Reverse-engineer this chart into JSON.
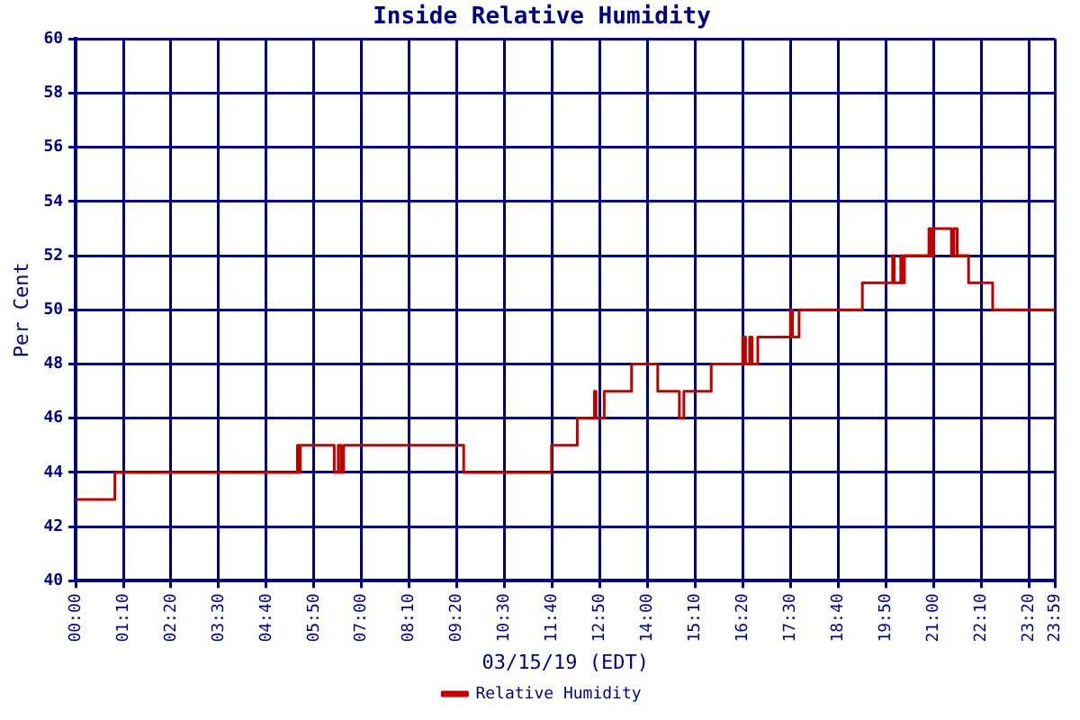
{
  "chart_data": {
    "type": "step",
    "title": "Inside Relative Humidity",
    "xlabel": "03/15/19 (EDT)",
    "ylabel": "Per Cent",
    "series": [
      {
        "name": "Relative Humidity",
        "color": "#c00000",
        "x": [
          0,
          0.96,
          5.43,
          5.47,
          5.5,
          6.33,
          6.43,
          6.5,
          6.56,
          9.5,
          11.65,
          12.28,
          12.7,
          12.74,
          12.94,
          13.61,
          14.25,
          14.78,
          14.89,
          15.56,
          16.33,
          16.4,
          16.5,
          16.56,
          16.7,
          17.5,
          17.55,
          17.71,
          19.26,
          20.0,
          20.04,
          20.2,
          20.24,
          20.29,
          20.89,
          20.95,
          21.0,
          21.44,
          21.5,
          21.58,
          21.86,
          22.45,
          23.98
        ],
        "values": [
          43,
          44,
          45,
          44,
          45,
          44,
          45,
          44,
          45,
          44,
          45,
          46,
          47,
          46,
          47,
          48,
          47,
          46,
          47,
          48,
          49,
          48,
          49,
          48,
          49,
          50,
          49,
          50,
          51,
          52,
          51,
          52,
          51,
          52,
          53,
          52,
          53,
          52,
          53,
          52,
          51,
          50,
          50
        ]
      }
    ],
    "xlim": [
      0,
      23.98
    ],
    "xticks": [
      {
        "value": 0,
        "label": "00:00"
      },
      {
        "value": 1.1667,
        "label": "01:10"
      },
      {
        "value": 2.3333,
        "label": "02:20"
      },
      {
        "value": 3.5,
        "label": "03:30"
      },
      {
        "value": 4.6667,
        "label": "04:40"
      },
      {
        "value": 5.8333,
        "label": "05:50"
      },
      {
        "value": 7,
        "label": "07:00"
      },
      {
        "value": 8.1667,
        "label": "08:10"
      },
      {
        "value": 9.3333,
        "label": "09:20"
      },
      {
        "value": 10.5,
        "label": "10:30"
      },
      {
        "value": 11.6667,
        "label": "11:40"
      },
      {
        "value": 12.8333,
        "label": "12:50"
      },
      {
        "value": 14,
        "label": "14:00"
      },
      {
        "value": 15.1667,
        "label": "15:10"
      },
      {
        "value": 16.3333,
        "label": "16:20"
      },
      {
        "value": 17.5,
        "label": "17:30"
      },
      {
        "value": 18.6667,
        "label": "18:40"
      },
      {
        "value": 19.8333,
        "label": "19:50"
      },
      {
        "value": 21,
        "label": "21:00"
      },
      {
        "value": 22.1667,
        "label": "22:10"
      },
      {
        "value": 23.3333,
        "label": "23:20"
      },
      {
        "value": 23.98,
        "label": "23:59"
      }
    ],
    "ylim": [
      40,
      60
    ],
    "yticks": [
      40,
      42,
      44,
      46,
      48,
      50,
      52,
      54,
      56,
      58,
      60
    ],
    "grid": true,
    "legend": "bottom",
    "line_style": "solid",
    "marker": "none"
  }
}
